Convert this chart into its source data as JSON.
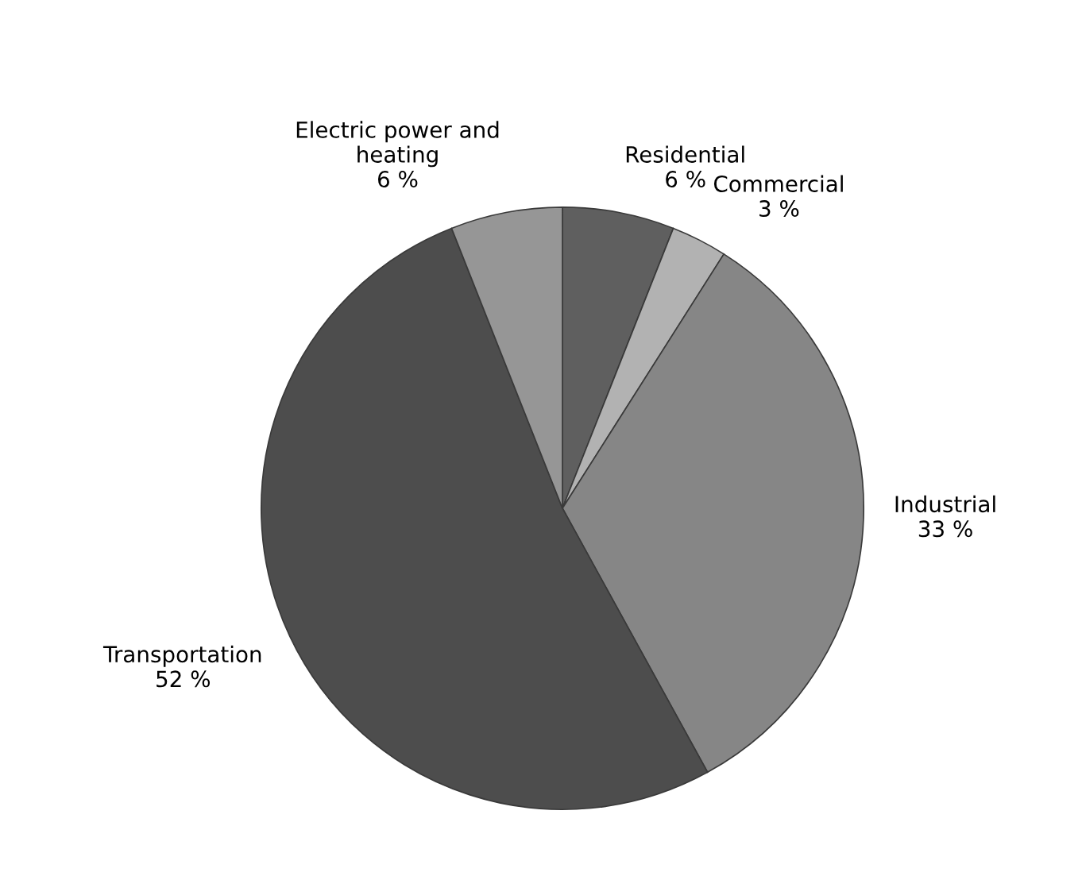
{
  "chart_data": {
    "type": "pie",
    "categories": [
      "Residential",
      "Commercial",
      "Industrial",
      "Transportation",
      "Electric power and\nheating"
    ],
    "values": [
      6,
      3,
      33,
      52,
      6
    ],
    "colors": [
      "#5f5f5f",
      "#b2b2b2",
      "#868686",
      "#4d4d4d",
      "#969696"
    ],
    "value_labels": [
      "6 %",
      "3 %",
      "33 %",
      "52 %",
      "6 %"
    ],
    "legend": false
  }
}
